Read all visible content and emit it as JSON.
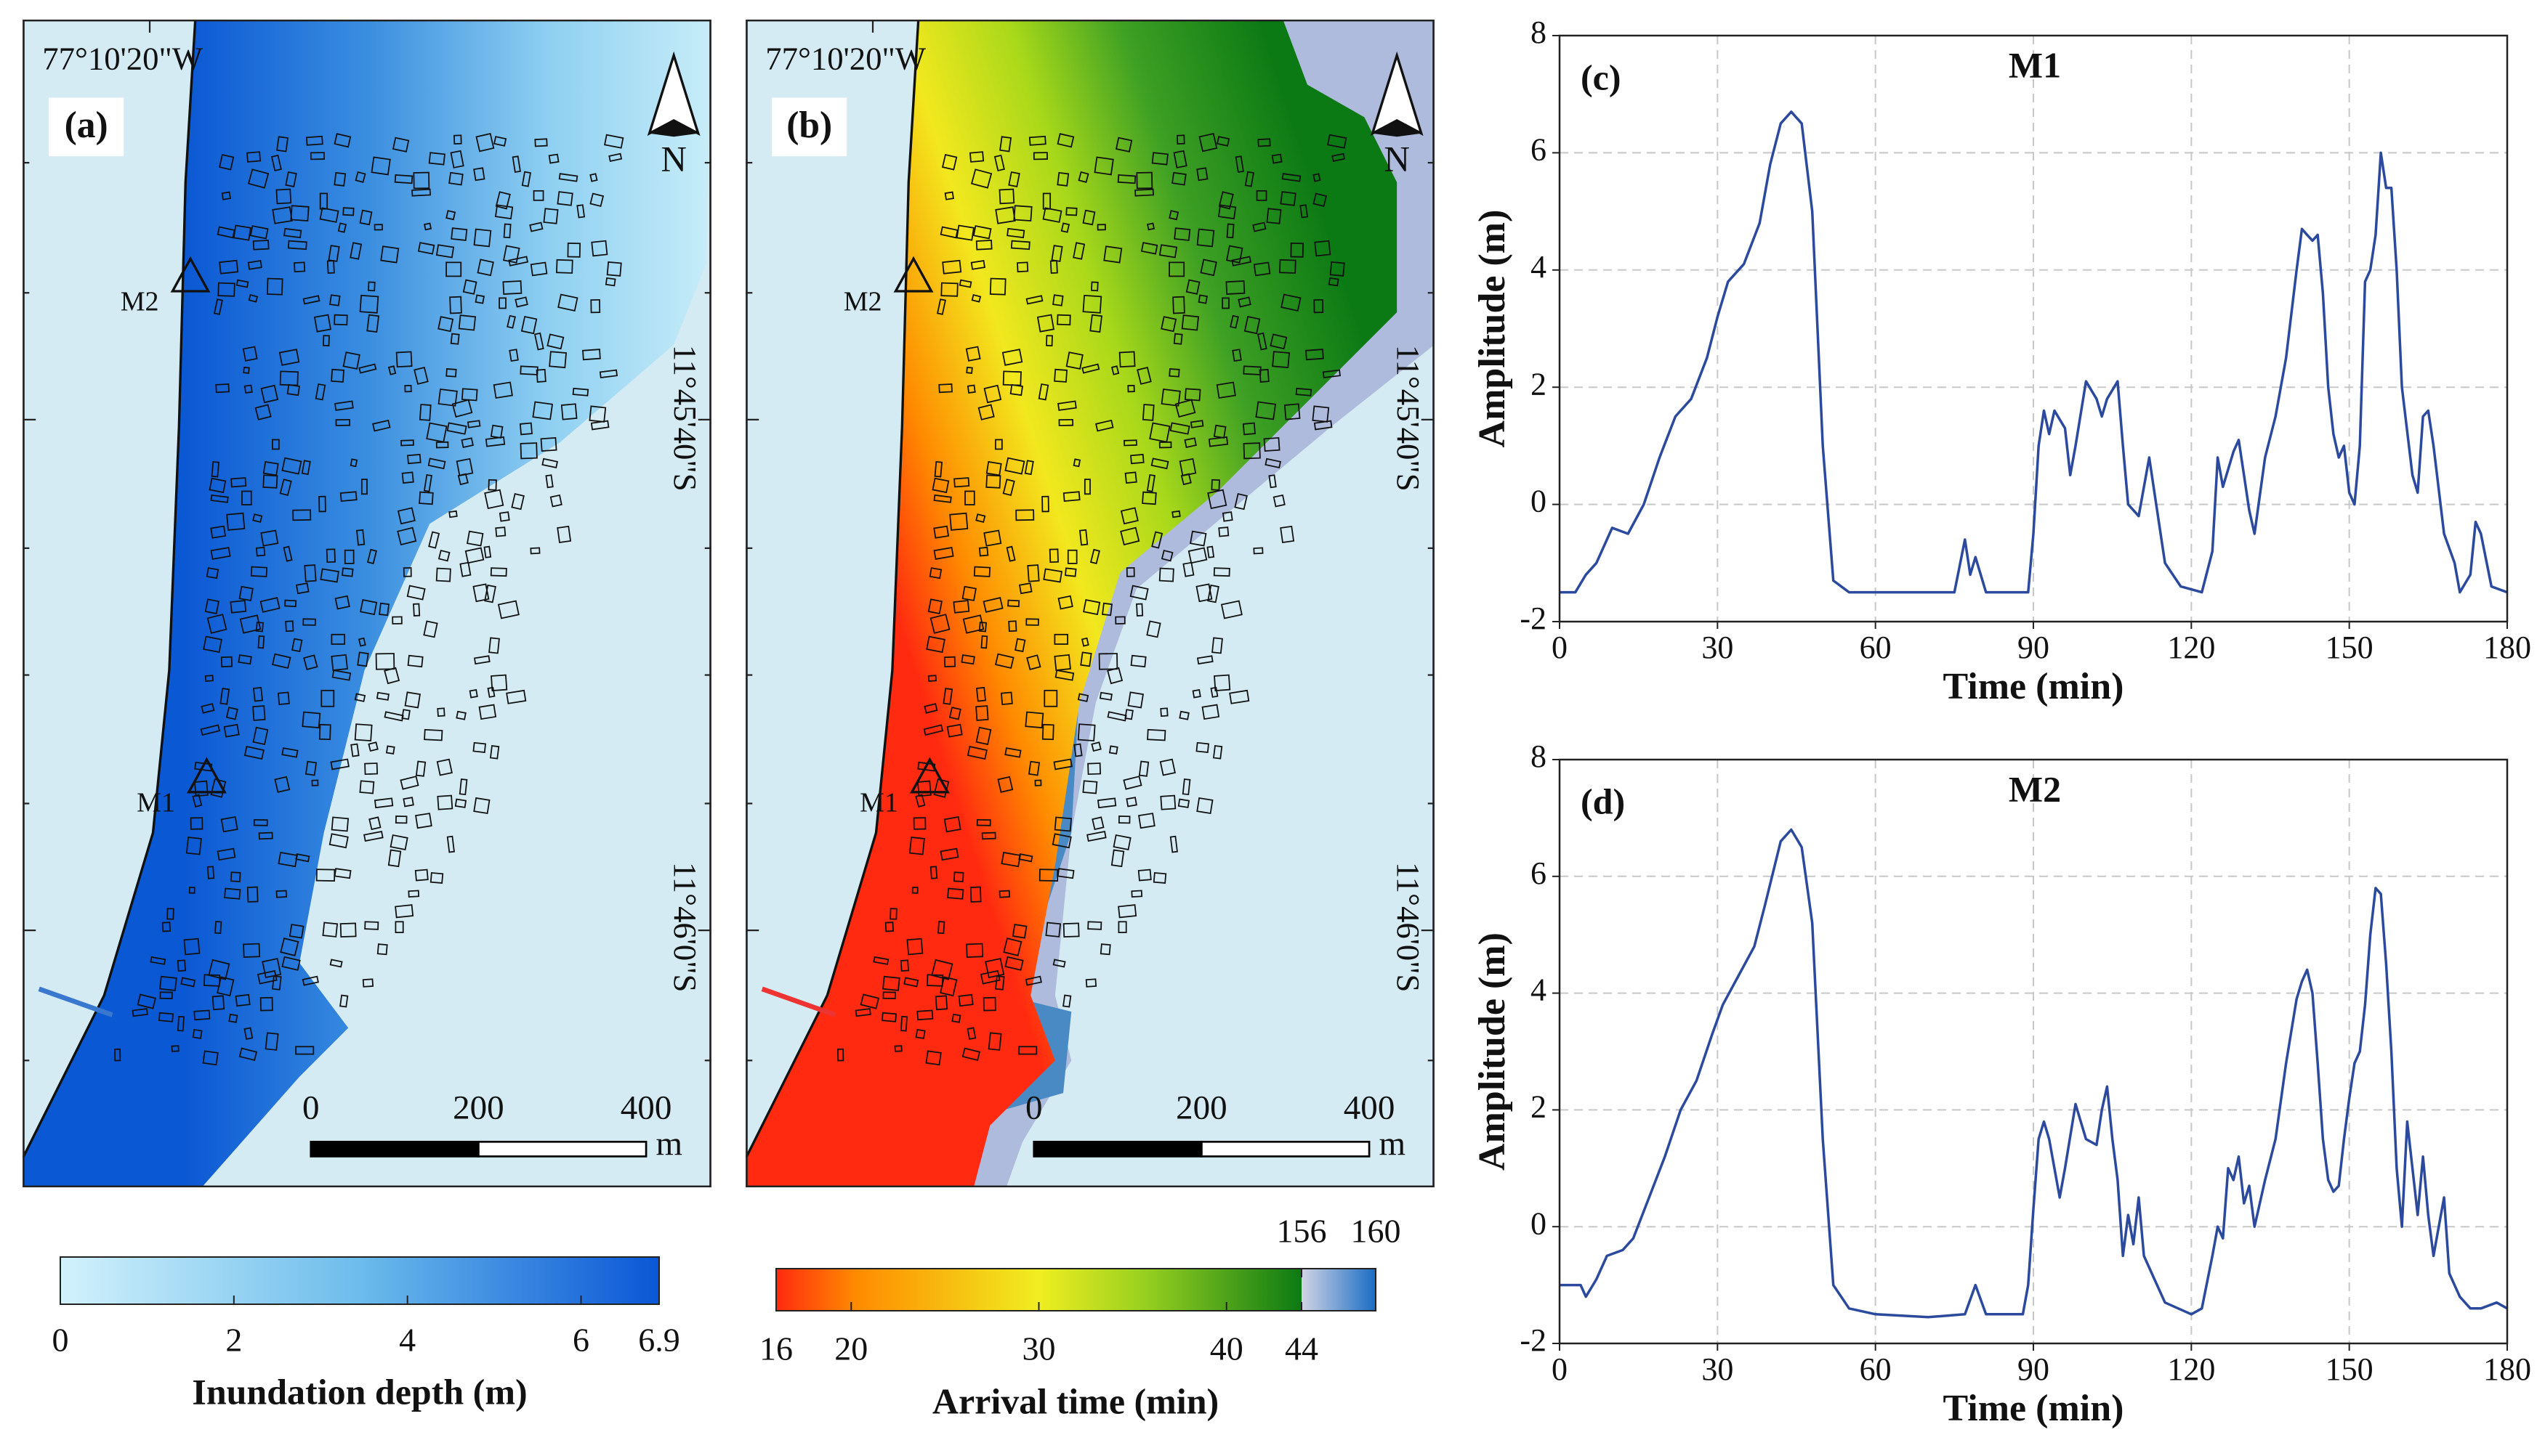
{
  "maps": [
    {
      "label": "(a)",
      "longitude": "77°10'20\"W",
      "latitudes": [
        "11°45'40\"S",
        "11°46'0\"S"
      ],
      "north": "N",
      "markers": [
        "M2",
        "M1"
      ],
      "scale": {
        "ticks": [
          0,
          200,
          400
        ],
        "unit": "m"
      },
      "colorbar": {
        "title": "Inundation depth (m)",
        "lim": [
          0,
          6.9
        ],
        "ticks": [
          0,
          2,
          4,
          6,
          6.9
        ]
      }
    },
    {
      "label": "(b)",
      "longitude": "77°10'20\"W",
      "latitudes": [
        "11°45'40\"S",
        "11°46'0\"S"
      ],
      "north": "N",
      "markers": [
        "M2",
        "M1"
      ],
      "scale": {
        "ticks": [
          0,
          200,
          400
        ],
        "unit": "m"
      },
      "colorbar": {
        "title": "Arrival time (min)",
        "lim": [
          16,
          44
        ],
        "ticks": [
          16,
          20,
          30,
          40,
          44
        ],
        "upper_lim": [
          156,
          160
        ],
        "upper_ticks": [
          156,
          160
        ]
      }
    }
  ],
  "chart_data": [
    {
      "type": "line",
      "panel": "(c)",
      "title": "M1",
      "x_label": "Time (min)",
      "y_label": "Amplitude (m)",
      "xlim": [
        0,
        180
      ],
      "xticks": [
        0,
        30,
        60,
        90,
        120,
        150,
        180
      ],
      "ylim": [
        -2,
        8
      ],
      "yticks": [
        -2,
        0,
        2,
        4,
        6,
        8
      ],
      "grid": true,
      "color": "#2b4a9e",
      "x": [
        0,
        3,
        5,
        7,
        10,
        13,
        16,
        19,
        22,
        25,
        28,
        30,
        32,
        35,
        38,
        40,
        42,
        44,
        46,
        48,
        50,
        52,
        55,
        60,
        70,
        75,
        77,
        78,
        79,
        81,
        89,
        90,
        91,
        92,
        93,
        94,
        96,
        97,
        98,
        100,
        102,
        103,
        104,
        106,
        107,
        108,
        110,
        112,
        113,
        115,
        118,
        122,
        124,
        125,
        126,
        128,
        129,
        130,
        131,
        132,
        134,
        136,
        138,
        140,
        141,
        142,
        143,
        144,
        145,
        146,
        147,
        148,
        149,
        150,
        151,
        152,
        153,
        154,
        155,
        156,
        157,
        158,
        159,
        160,
        162,
        163,
        164,
        165,
        166,
        168,
        170,
        171,
        173,
        174,
        175,
        177,
        180
      ],
      "values": [
        -1.5,
        -1.5,
        -1.2,
        -1.0,
        -0.4,
        -0.5,
        0,
        0.8,
        1.5,
        1.8,
        2.5,
        3.2,
        3.8,
        4.1,
        4.8,
        5.8,
        6.5,
        6.7,
        6.5,
        5.0,
        1.0,
        -1.3,
        -1.5,
        -1.5,
        -1.5,
        -1.5,
        -0.6,
        -1.2,
        -0.9,
        -1.5,
        -1.5,
        -0.5,
        1.0,
        1.6,
        1.2,
        1.6,
        1.3,
        0.5,
        1.0,
        2.1,
        1.8,
        1.5,
        1.8,
        2.1,
        1.0,
        0,
        -0.2,
        0.8,
        0.2,
        -1.0,
        -1.4,
        -1.5,
        -0.8,
        0.8,
        0.3,
        0.9,
        1.1,
        0.5,
        -0.1,
        -0.5,
        0.8,
        1.5,
        2.5,
        4.0,
        4.7,
        4.6,
        4.5,
        4.6,
        3.6,
        2.0,
        1.2,
        0.8,
        1.0,
        0.2,
        0,
        1.0,
        3.8,
        4.0,
        4.6,
        6.0,
        5.4,
        5.4,
        4.0,
        2.0,
        0.5,
        0.2,
        1.5,
        1.6,
        1.0,
        -0.5,
        -1.0,
        -1.5,
        -1.2,
        -0.3,
        -0.5,
        -1.4,
        -1.5
      ]
    },
    {
      "type": "line",
      "panel": "(d)",
      "title": "M2",
      "x_label": "Time (min)",
      "y_label": "Amplitude (m)",
      "xlim": [
        0,
        180
      ],
      "xticks": [
        0,
        30,
        60,
        90,
        120,
        150,
        180
      ],
      "ylim": [
        -2,
        8
      ],
      "yticks": [
        -2,
        0,
        2,
        4,
        6,
        8
      ],
      "grid": true,
      "color": "#2b4a9e",
      "x": [
        0,
        4,
        5,
        7,
        9,
        12,
        14,
        17,
        20,
        23,
        26,
        29,
        31,
        34,
        37,
        39,
        42,
        44,
        46,
        48,
        50,
        52,
        55,
        60,
        70,
        77,
        79,
        81,
        88,
        89,
        90,
        91,
        92,
        93,
        95,
        96,
        98,
        99,
        100,
        102,
        103,
        104,
        105,
        106,
        107,
        108,
        109,
        110,
        111,
        113,
        115,
        120,
        122,
        124,
        125,
        126,
        127,
        128,
        129,
        130,
        131,
        132,
        134,
        136,
        138,
        140,
        141,
        142,
        143,
        144,
        145,
        146,
        147,
        148,
        149,
        150,
        151,
        152,
        153,
        154,
        155,
        156,
        157,
        158,
        159,
        160,
        161,
        162,
        163,
        164,
        165,
        166,
        167,
        168,
        169,
        171,
        173,
        175,
        178,
        180
      ],
      "values": [
        -1.0,
        -1.0,
        -1.2,
        -0.9,
        -0.5,
        -0.4,
        -0.2,
        0.5,
        1.2,
        2.0,
        2.5,
        3.3,
        3.8,
        4.3,
        4.8,
        5.5,
        6.6,
        6.8,
        6.5,
        5.2,
        1.5,
        -1.0,
        -1.4,
        -1.5,
        -1.55,
        -1.5,
        -1.0,
        -1.5,
        -1.5,
        -1.0,
        0.3,
        1.5,
        1.8,
        1.5,
        0.5,
        1.0,
        2.1,
        1.8,
        1.5,
        1.4,
        2.0,
        2.4,
        1.5,
        0.8,
        -0.5,
        0.2,
        -0.3,
        0.5,
        -0.5,
        -0.9,
        -1.3,
        -1.5,
        -1.4,
        -0.5,
        0,
        -0.2,
        1.0,
        0.8,
        1.2,
        0.4,
        0.7,
        0,
        0.8,
        1.5,
        2.8,
        3.9,
        4.2,
        4.4,
        4.0,
        2.8,
        1.5,
        0.8,
        0.6,
        0.7,
        1.5,
        2.2,
        2.8,
        3.0,
        3.8,
        5.0,
        5.8,
        5.7,
        4.5,
        3.0,
        1.0,
        0,
        1.8,
        1.0,
        0.2,
        1.2,
        0.2,
        -0.5,
        0,
        0.5,
        -0.8,
        -1.2,
        -1.4,
        -1.4,
        -1.3,
        -1.4
      ]
    }
  ]
}
